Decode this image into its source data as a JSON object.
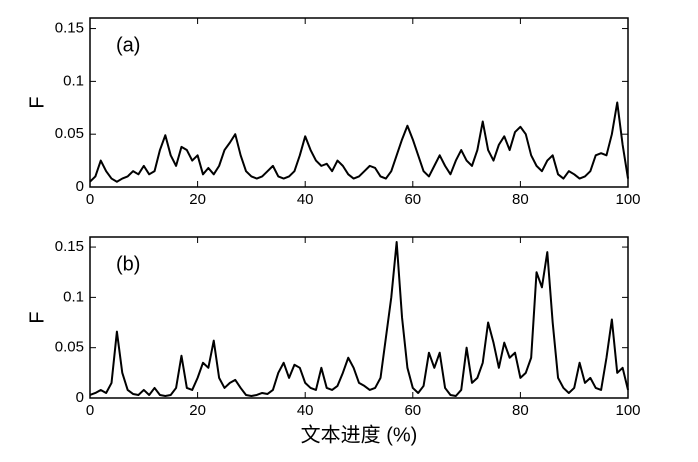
{
  "chart_data": [
    {
      "type": "line",
      "annotation": "(a)",
      "ylabel": "F",
      "color": "#000000",
      "xlim": [
        0,
        100
      ],
      "xticks": [
        0,
        20,
        40,
        60,
        80,
        100
      ],
      "ylim": [
        0,
        0.16
      ],
      "yticks": [
        0,
        0.05,
        0.1,
        0.15
      ],
      "x": [
        0,
        1,
        2,
        3,
        4,
        5,
        6,
        7,
        8,
        9,
        10,
        11,
        12,
        13,
        14,
        15,
        16,
        17,
        18,
        19,
        20,
        21,
        22,
        23,
        24,
        25,
        26,
        27,
        28,
        29,
        30,
        31,
        32,
        33,
        34,
        35,
        36,
        37,
        38,
        39,
        40,
        41,
        42,
        43,
        44,
        45,
        46,
        47,
        48,
        49,
        50,
        51,
        52,
        53,
        54,
        55,
        56,
        57,
        58,
        59,
        60,
        61,
        62,
        63,
        64,
        65,
        66,
        67,
        68,
        69,
        70,
        71,
        72,
        73,
        74,
        75,
        76,
        77,
        78,
        79,
        80,
        81,
        82,
        83,
        84,
        85,
        86,
        87,
        88,
        89,
        90,
        91,
        92,
        93,
        94,
        95,
        96,
        97,
        98,
        99,
        100
      ],
      "values": [
        0.005,
        0.01,
        0.025,
        0.015,
        0.008,
        0.005,
        0.008,
        0.01,
        0.015,
        0.012,
        0.02,
        0.012,
        0.015,
        0.035,
        0.049,
        0.03,
        0.02,
        0.038,
        0.035,
        0.025,
        0.03,
        0.012,
        0.018,
        0.012,
        0.02,
        0.035,
        0.042,
        0.05,
        0.03,
        0.015,
        0.01,
        0.008,
        0.01,
        0.015,
        0.02,
        0.01,
        0.008,
        0.01,
        0.015,
        0.03,
        0.048,
        0.035,
        0.025,
        0.02,
        0.022,
        0.015,
        0.025,
        0.02,
        0.012,
        0.008,
        0.01,
        0.015,
        0.02,
        0.018,
        0.01,
        0.008,
        0.015,
        0.03,
        0.045,
        0.058,
        0.045,
        0.03,
        0.015,
        0.01,
        0.02,
        0.03,
        0.02,
        0.012,
        0.025,
        0.035,
        0.025,
        0.02,
        0.035,
        0.062,
        0.035,
        0.025,
        0.04,
        0.048,
        0.035,
        0.052,
        0.057,
        0.05,
        0.03,
        0.02,
        0.015,
        0.025,
        0.03,
        0.012,
        0.008,
        0.015,
        0.012,
        0.008,
        0.01,
        0.015,
        0.03,
        0.032,
        0.03,
        0.05,
        0.08,
        0.04,
        0.008
      ]
    },
    {
      "type": "line",
      "annotation": "(b)",
      "ylabel": "F",
      "xlabel": "文本进度 (%)",
      "color": "#000000",
      "xlim": [
        0,
        100
      ],
      "xticks": [
        0,
        20,
        40,
        60,
        80,
        100
      ],
      "ylim": [
        0,
        0.16
      ],
      "yticks": [
        0,
        0.05,
        0.1,
        0.15
      ],
      "x": [
        0,
        1,
        2,
        3,
        4,
        5,
        6,
        7,
        8,
        9,
        10,
        11,
        12,
        13,
        14,
        15,
        16,
        17,
        18,
        19,
        20,
        21,
        22,
        23,
        24,
        25,
        26,
        27,
        28,
        29,
        30,
        31,
        32,
        33,
        34,
        35,
        36,
        37,
        38,
        39,
        40,
        41,
        42,
        43,
        44,
        45,
        46,
        47,
        48,
        49,
        50,
        51,
        52,
        53,
        54,
        55,
        56,
        57,
        58,
        59,
        60,
        61,
        62,
        63,
        64,
        65,
        66,
        67,
        68,
        69,
        70,
        71,
        72,
        73,
        74,
        75,
        76,
        77,
        78,
        79,
        80,
        81,
        82,
        83,
        84,
        85,
        86,
        87,
        88,
        89,
        90,
        91,
        92,
        93,
        94,
        95,
        96,
        97,
        98,
        99,
        100
      ],
      "values": [
        0.003,
        0.005,
        0.008,
        0.005,
        0.015,
        0.066,
        0.025,
        0.008,
        0.004,
        0.003,
        0.008,
        0.003,
        0.01,
        0.003,
        0.002,
        0.003,
        0.01,
        0.042,
        0.01,
        0.008,
        0.02,
        0.035,
        0.03,
        0.057,
        0.02,
        0.01,
        0.015,
        0.018,
        0.01,
        0.003,
        0.002,
        0.003,
        0.005,
        0.004,
        0.008,
        0.025,
        0.035,
        0.02,
        0.033,
        0.03,
        0.015,
        0.01,
        0.008,
        0.03,
        0.01,
        0.008,
        0.012,
        0.025,
        0.04,
        0.03,
        0.015,
        0.012,
        0.008,
        0.01,
        0.02,
        0.06,
        0.1,
        0.155,
        0.08,
        0.03,
        0.01,
        0.005,
        0.012,
        0.045,
        0.03,
        0.045,
        0.01,
        0.003,
        0.002,
        0.008,
        0.05,
        0.015,
        0.02,
        0.035,
        0.075,
        0.055,
        0.03,
        0.055,
        0.04,
        0.045,
        0.02,
        0.025,
        0.04,
        0.125,
        0.11,
        0.145,
        0.075,
        0.02,
        0.01,
        0.005,
        0.01,
        0.035,
        0.015,
        0.02,
        0.01,
        0.008,
        0.04,
        0.078,
        0.025,
        0.03,
        0.008
      ]
    }
  ]
}
